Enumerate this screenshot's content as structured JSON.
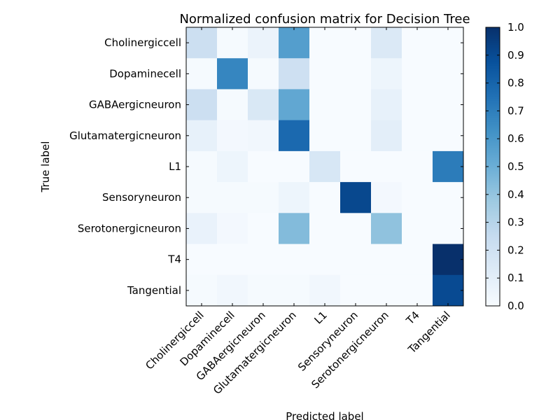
{
  "chart_data": {
    "type": "heatmap",
    "title": "Normalized confusion matrix for Decision Tree",
    "xlabel": "Predicted label",
    "ylabel": "True label",
    "row_labels": [
      "Cholinergiccell",
      "Dopaminecell",
      "GABAergicneuron",
      "Glutamatergicneuron",
      "L1",
      "Sensoryneuron",
      "Serotonergicneuron",
      "T4",
      "Tangential"
    ],
    "col_labels": [
      "Cholinergiccell",
      "Dopaminecell",
      "GABAergicneuron",
      "Glutamatergicneuron",
      "L1",
      "Sensoryneuron",
      "Serotonergicneuron",
      "T4",
      "Tangential"
    ],
    "values": [
      [
        0.22,
        0.01,
        0.06,
        0.57,
        0.0,
        0.0,
        0.14,
        0.0,
        0.0
      ],
      [
        0.01,
        0.67,
        0.01,
        0.21,
        0.0,
        0.0,
        0.05,
        0.0,
        0.0
      ],
      [
        0.22,
        0.01,
        0.15,
        0.53,
        0.0,
        0.0,
        0.08,
        0.0,
        0.0
      ],
      [
        0.08,
        0.02,
        0.03,
        0.78,
        0.0,
        0.0,
        0.1,
        0.0,
        0.0
      ],
      [
        0.01,
        0.05,
        0.0,
        0.0,
        0.16,
        0.0,
        0.0,
        0.0,
        0.71
      ],
      [
        0.01,
        0.01,
        0.01,
        0.05,
        0.0,
        0.91,
        0.02,
        0.0,
        0.0
      ],
      [
        0.07,
        0.02,
        0.0,
        0.44,
        0.0,
        0.0,
        0.41,
        0.0,
        0.0
      ],
      [
        0.0,
        0.0,
        0.0,
        0.0,
        0.0,
        0.0,
        0.0,
        0.0,
        1.0
      ],
      [
        0.01,
        0.03,
        0.01,
        0.01,
        0.03,
        0.0,
        0.0,
        0.0,
        0.9
      ]
    ],
    "colorbar": {
      "range": [
        0.0,
        1.0
      ],
      "ticks": [
        "0.0",
        "0.1",
        "0.2",
        "0.3",
        "0.4",
        "0.5",
        "0.6",
        "0.7",
        "0.8",
        "0.9",
        "1.0"
      ]
    },
    "colormap": "Blues"
  }
}
